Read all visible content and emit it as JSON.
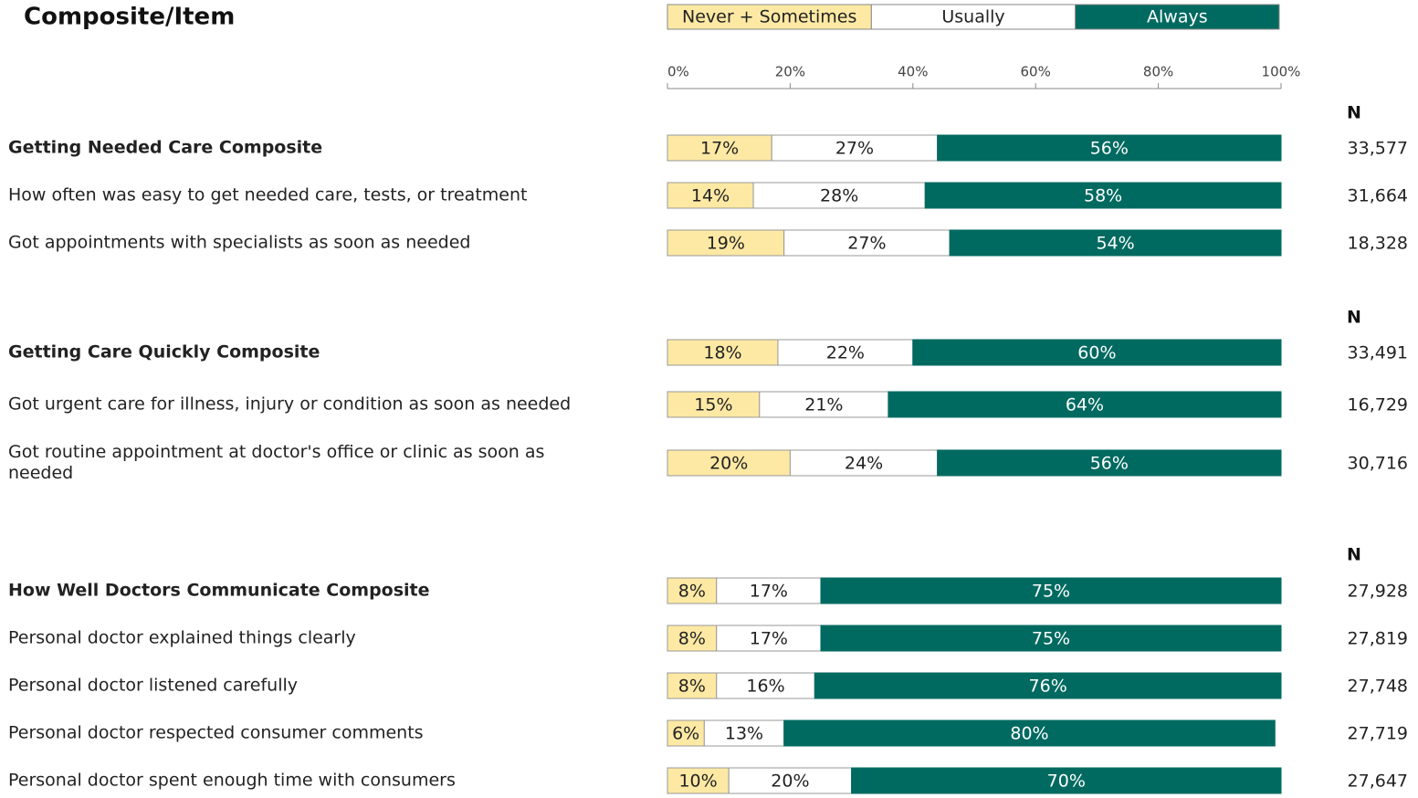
{
  "chart_data": {
    "type": "bar",
    "title": "Composite/Item",
    "series": [
      {
        "name": "Never + Sometimes",
        "color": "#fde9a4"
      },
      {
        "name": "Usually",
        "color": "#ffffff"
      },
      {
        "name": "Always",
        "color": "#006a60"
      }
    ],
    "xlim": [
      0,
      100
    ],
    "xticks": [
      {
        "value": 0,
        "label": "0%"
      },
      {
        "value": 20,
        "label": "20%"
      },
      {
        "value": 40,
        "label": "40%"
      },
      {
        "value": 60,
        "label": "60%"
      },
      {
        "value": 80,
        "label": "80%"
      },
      {
        "value": 100,
        "label": "100%"
      }
    ],
    "groups": [
      {
        "n_label": "N",
        "categories": [
          "Getting Needed Care Composite",
          "How often was easy to get needed care, tests, or treatment",
          "Got appointments with specialists as soon as needed"
        ],
        "series": [
          {
            "values": [
              17,
              14,
              19
            ],
            "value_labels": [
              "17%",
              "14%",
              "19%"
            ]
          },
          {
            "values": [
              27,
              28,
              27
            ],
            "value_labels": [
              "27%",
              "28%",
              "27%"
            ]
          },
          {
            "values": [
              56,
              58,
              54
            ],
            "value_labels": [
              "56%",
              "58%",
              "54%"
            ]
          }
        ],
        "n": {
          "values": [
            33577,
            31664,
            18328
          ],
          "value_labels": [
            "33,577",
            "31,664",
            "18,328"
          ]
        }
      },
      {
        "n_label": "N",
        "categories": [
          "Getting Care Quickly Composite",
          "Got urgent care for illness, injury or condition as soon as needed",
          "Got routine appointment at doctor's office or clinic as soon as needed"
        ],
        "series": [
          {
            "values": [
              18,
              15,
              20
            ],
            "value_labels": [
              "18%",
              "15%",
              "20%"
            ]
          },
          {
            "values": [
              22,
              21,
              24
            ],
            "value_labels": [
              "22%",
              "21%",
              "24%"
            ]
          },
          {
            "values": [
              60,
              64,
              56
            ],
            "value_labels": [
              "60%",
              "64%",
              "56%"
            ]
          }
        ],
        "n": {
          "values": [
            33491,
            16729,
            30716
          ],
          "value_labels": [
            "33,491",
            "16,729",
            "30,716"
          ]
        }
      },
      {
        "n_label": "N",
        "categories": [
          "How Well Doctors Communicate Composite",
          "Personal doctor explained things clearly",
          "Personal doctor listened carefully",
          "Personal doctor respected consumer comments",
          "Personal doctor spent enough time with consumers"
        ],
        "series": [
          {
            "values": [
              8,
              8,
              8,
              6,
              10
            ],
            "value_labels": [
              "8%",
              "8%",
              "8%",
              "6%",
              "10%"
            ]
          },
          {
            "values": [
              17,
              17,
              16,
              13,
              20
            ],
            "value_labels": [
              "17%",
              "17%",
              "16%",
              "13%",
              "20%"
            ]
          },
          {
            "values": [
              75,
              75,
              76,
              80,
              70
            ],
            "value_labels": [
              "75%",
              "75%",
              "76%",
              "80%",
              "70%"
            ]
          }
        ],
        "n": {
          "values": [
            27928,
            27819,
            27748,
            27719,
            27647
          ],
          "value_labels": [
            "27,928",
            "27,819",
            "27,748",
            "27,719",
            "27,647"
          ]
        }
      }
    ]
  }
}
